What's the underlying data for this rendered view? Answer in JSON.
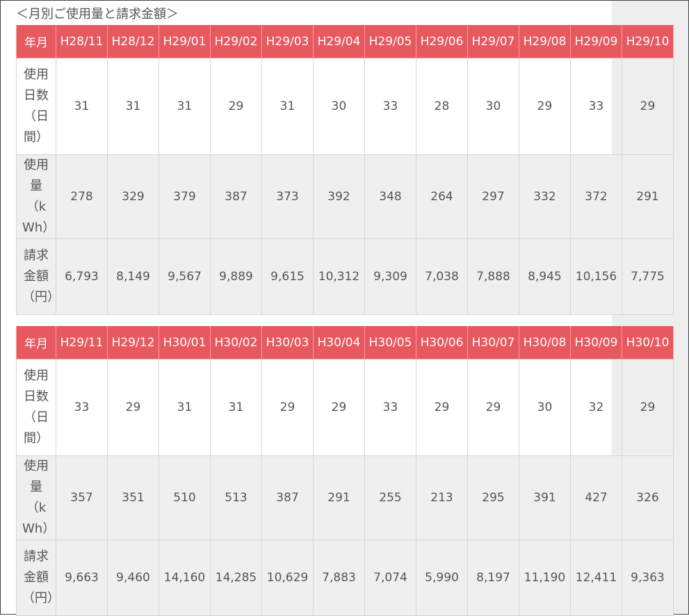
{
  "title": "＜月別ご使用量と請求金額＞",
  "tables": [
    {
      "header": [
        "年月",
        "H28/11",
        "H28/12",
        "H29/01",
        "H29/02",
        "H29/03",
        "H29/04",
        "H29/05",
        "H29/06",
        "H29/07",
        "H29/08",
        "H29/09",
        "H29/10"
      ],
      "rows": [
        [
          "使用日数（日間）",
          "31",
          "31",
          "31",
          "29",
          "31",
          "30",
          "33",
          "28",
          "30",
          "29",
          "33",
          "29"
        ],
        [
          "使用量（kWh）",
          "278",
          "329",
          "379",
          "387",
          "373",
          "392",
          "348",
          "264",
          "297",
          "332",
          "372",
          "291"
        ],
        [
          "請求金額（円）",
          "6,793",
          "8,149",
          "9,567",
          "9,889",
          "9,615",
          "10,312",
          "9,309",
          "7,038",
          "7,888",
          "8,945",
          "10,156",
          "7,775"
        ]
      ]
    },
    {
      "header": [
        "年月",
        "H29/11",
        "H29/12",
        "H30/01",
        "H30/02",
        "H30/03",
        "H30/04",
        "H30/05",
        "H30/06",
        "H30/07",
        "H30/08",
        "H30/09",
        "H30/10"
      ],
      "rows": [
        [
          "使用日数（日間）",
          "33",
          "29",
          "31",
          "31",
          "29",
          "29",
          "33",
          "29",
          "29",
          "30",
          "32",
          "29"
        ],
        [
          "使用量（kWh）",
          "357",
          "351",
          "510",
          "513",
          "387",
          "291",
          "255",
          "213",
          "295",
          "391",
          "427",
          "326"
        ],
        [
          "請求金額（円）",
          "9,663",
          "9,460",
          "14,160",
          "14,285",
          "10,629",
          "7,883",
          "7,074",
          "5,990",
          "8,197",
          "11,190",
          "12,411",
          "9,363"
        ]
      ]
    }
  ]
}
